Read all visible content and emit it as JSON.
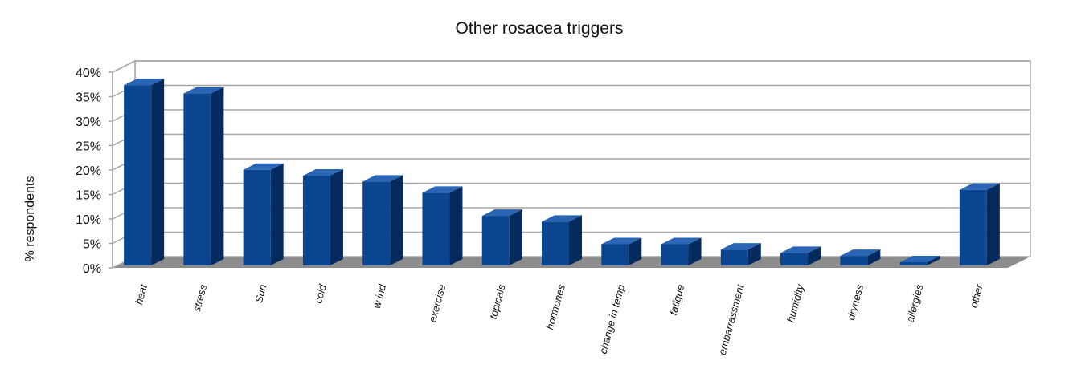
{
  "chart_data": {
    "type": "bar",
    "title": "Other rosacea triggers",
    "xlabel": "",
    "ylabel": "% respondents",
    "ylim": [
      0,
      40
    ],
    "y_ticks": [
      "0%",
      "5%",
      "10%",
      "15%",
      "20%",
      "25%",
      "30%",
      "35%",
      "40%"
    ],
    "y_tick_values": [
      0,
      5,
      10,
      15,
      20,
      25,
      30,
      35,
      40
    ],
    "categories": [
      "heat",
      "stress",
      "Sun",
      "cold",
      "w ind",
      "exercise",
      "topicals",
      "hormones",
      "change in temp",
      "fatigue",
      "embarrassment",
      "humidity",
      "dryness",
      "allergies",
      "other"
    ],
    "values": [
      38,
      36.3,
      20.7,
      19.5,
      18.3,
      16,
      11.3,
      10.1,
      5.5,
      5.5,
      4.4,
      3.7,
      3.1,
      1.8,
      16.6
    ],
    "grid": true,
    "legend": "none",
    "style": "3d",
    "colors": {
      "bar_front": "#0B4590",
      "bar_side": "#052A5E",
      "bar_top": "#2A64B4",
      "wall": "#FFFFFF",
      "floor": "#8C8C8C",
      "gridline": "#A6A6A6"
    }
  }
}
